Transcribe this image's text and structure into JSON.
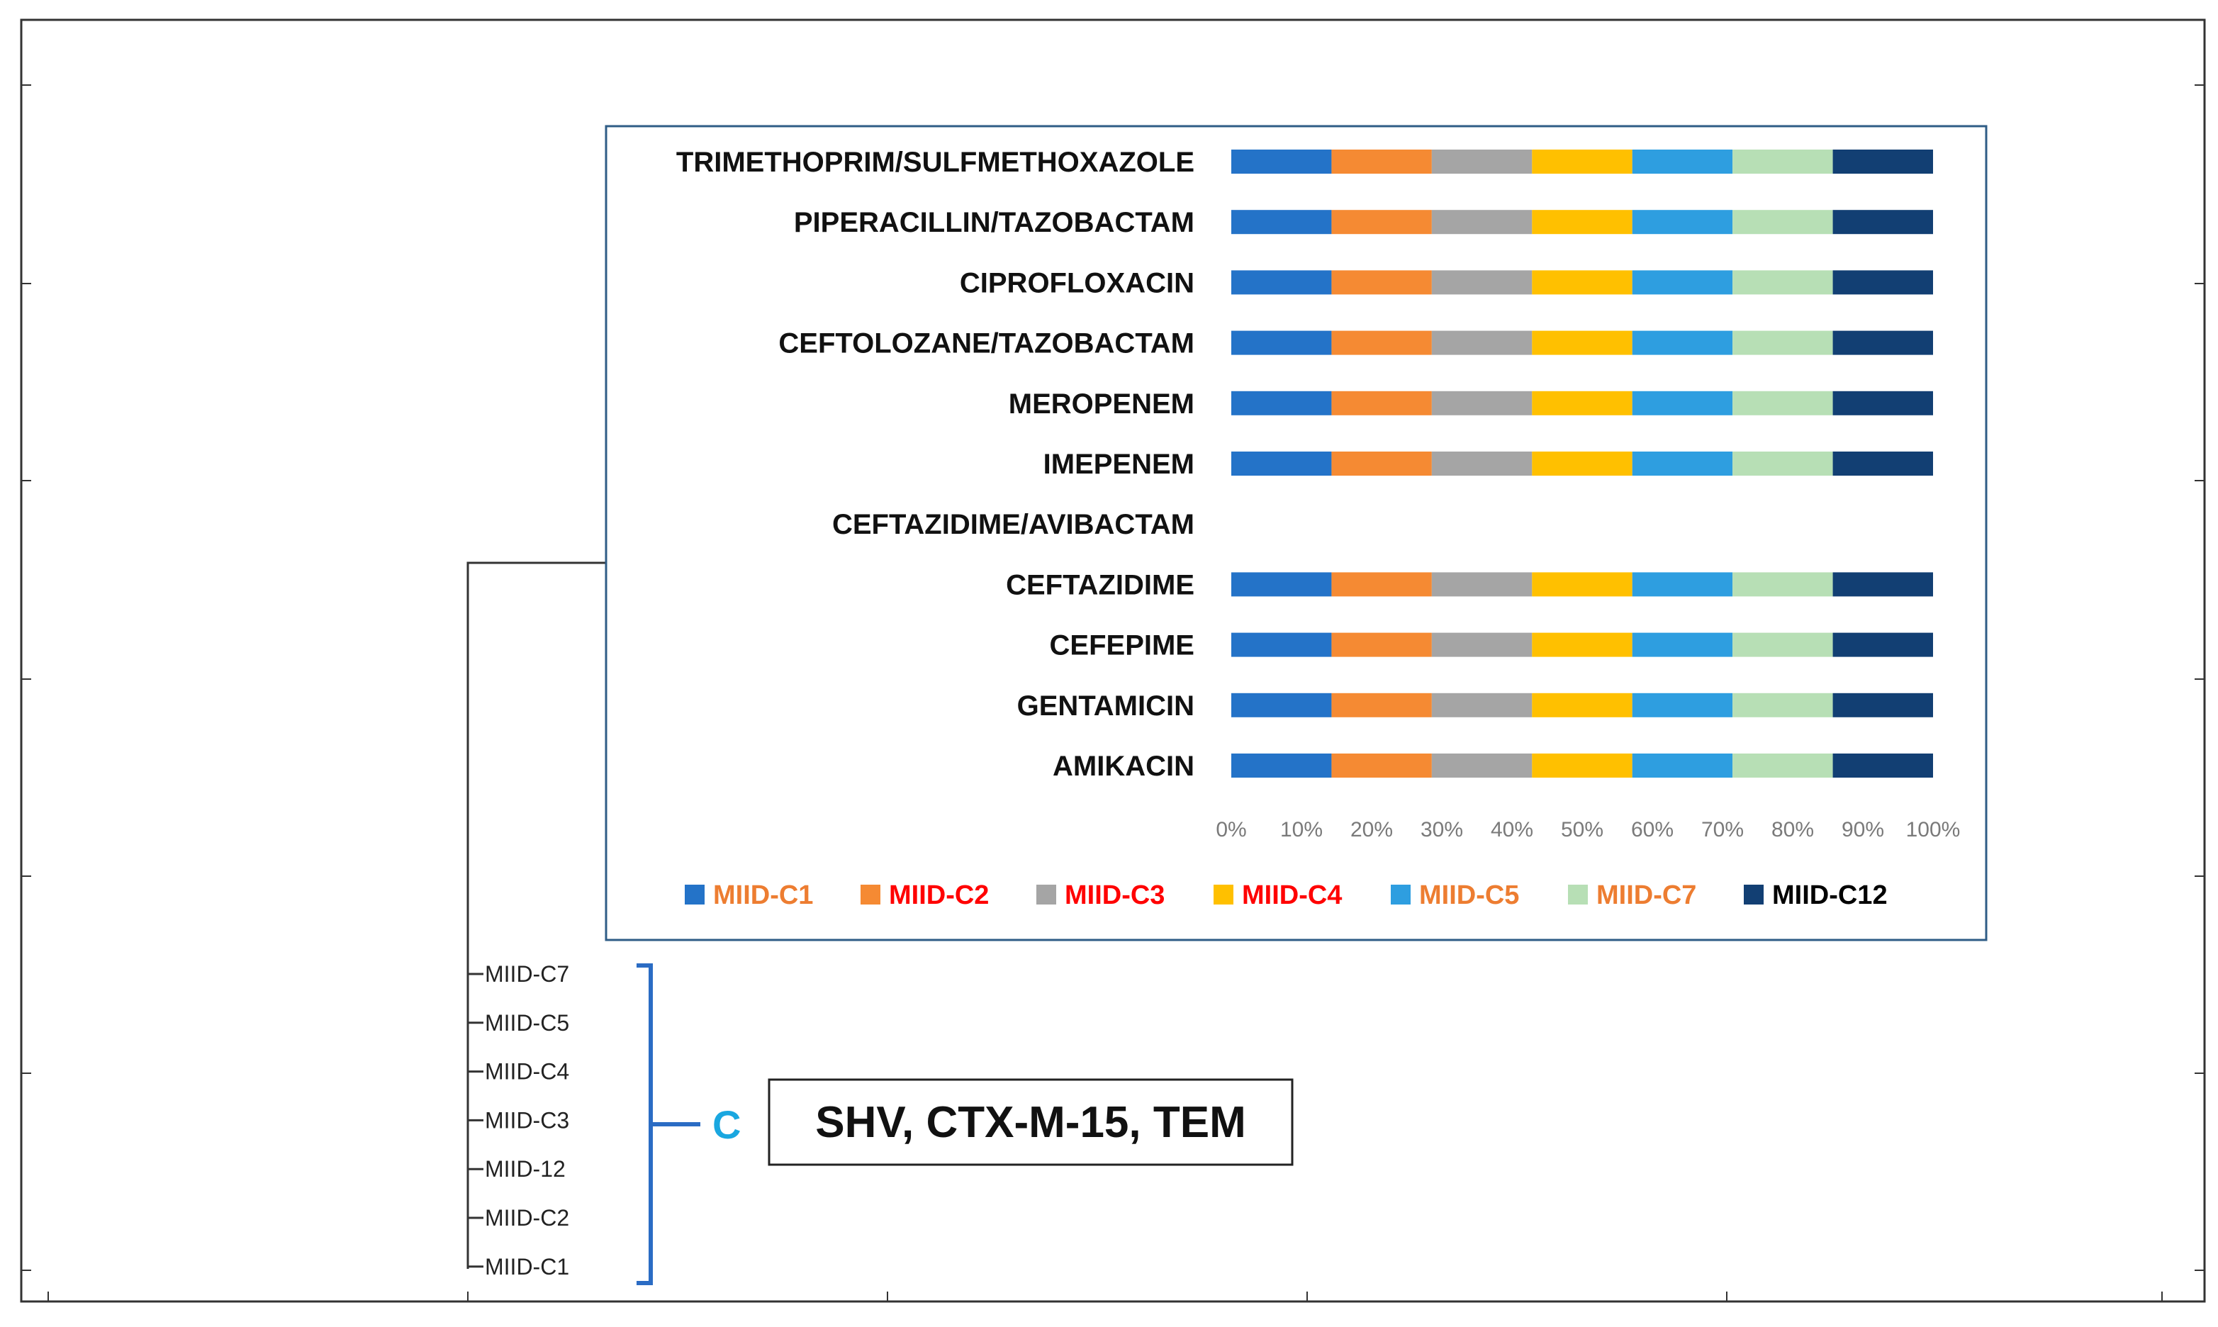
{
  "chart_data": {
    "type": "bar",
    "orientation": "horizontal",
    "stacked": true,
    "categories": [
      "TRIMETHOPRIM/SULFMETHOXAZOLE",
      "PIPERACILLIN/TAZOBACTAM",
      "CIPROFLOXACIN",
      "CEFTOLOZANE/TAZOBACTAM",
      "MEROPENEM",
      "IMEPENEM",
      "CEFTAZIDIME/AVIBACTAM",
      "CEFTAZIDIME",
      "CEFEPIME",
      "GENTAMICIN",
      "AMIKACIN"
    ],
    "series": [
      {
        "name": "MIID-C1",
        "color": "#2473c8",
        "label_color": "#ed7d31",
        "values": [
          1,
          1,
          1,
          1,
          1,
          1,
          0,
          1,
          1,
          1,
          1
        ]
      },
      {
        "name": "MIID-C2",
        "color": "#f58a33",
        "label_color": "#ff0000",
        "values": [
          1,
          1,
          1,
          1,
          1,
          1,
          0,
          1,
          1,
          1,
          1
        ]
      },
      {
        "name": "MIID-C3",
        "color": "#a5a5a5",
        "label_color": "#ff0000",
        "values": [
          1,
          1,
          1,
          1,
          1,
          1,
          0,
          1,
          1,
          1,
          1
        ]
      },
      {
        "name": "MIID-C4",
        "color": "#ffc000",
        "label_color": "#ff0000",
        "values": [
          1,
          1,
          1,
          1,
          1,
          1,
          0,
          1,
          1,
          1,
          1
        ]
      },
      {
        "name": "MIID-C5",
        "color": "#2e9ee0",
        "label_color": "#ed7d31",
        "values": [
          1,
          1,
          1,
          1,
          1,
          1,
          0,
          1,
          1,
          1,
          1
        ]
      },
      {
        "name": "MIID-C7",
        "color": "#b7dfb5",
        "label_color": "#ed7d31",
        "values": [
          1,
          1,
          1,
          1,
          1,
          1,
          0,
          1,
          1,
          1,
          1
        ]
      },
      {
        "name": "MIID-C12",
        "color": "#123f73",
        "label_color": "#000000",
        "values": [
          1,
          1,
          1,
          1,
          1,
          1,
          0,
          1,
          1,
          1,
          1
        ]
      }
    ],
    "xlim": [
      0,
      100
    ],
    "x_ticks": [
      "0%",
      "10%",
      "20%",
      "30%",
      "40%",
      "50%",
      "60%",
      "70%",
      "80%",
      "90%",
      "100%"
    ],
    "legend_position": "bottom"
  },
  "dendrogram": {
    "leaves": [
      "MIID-C7",
      "MIID-C5",
      "MIID-C4",
      "MIID-C3",
      "MIID-12",
      "MIID-C2",
      "MIID-C1"
    ],
    "cluster_label": "C",
    "genes": "SHV, CTX-M-15, TEM",
    "bracket_color": "#2b6cc4"
  }
}
